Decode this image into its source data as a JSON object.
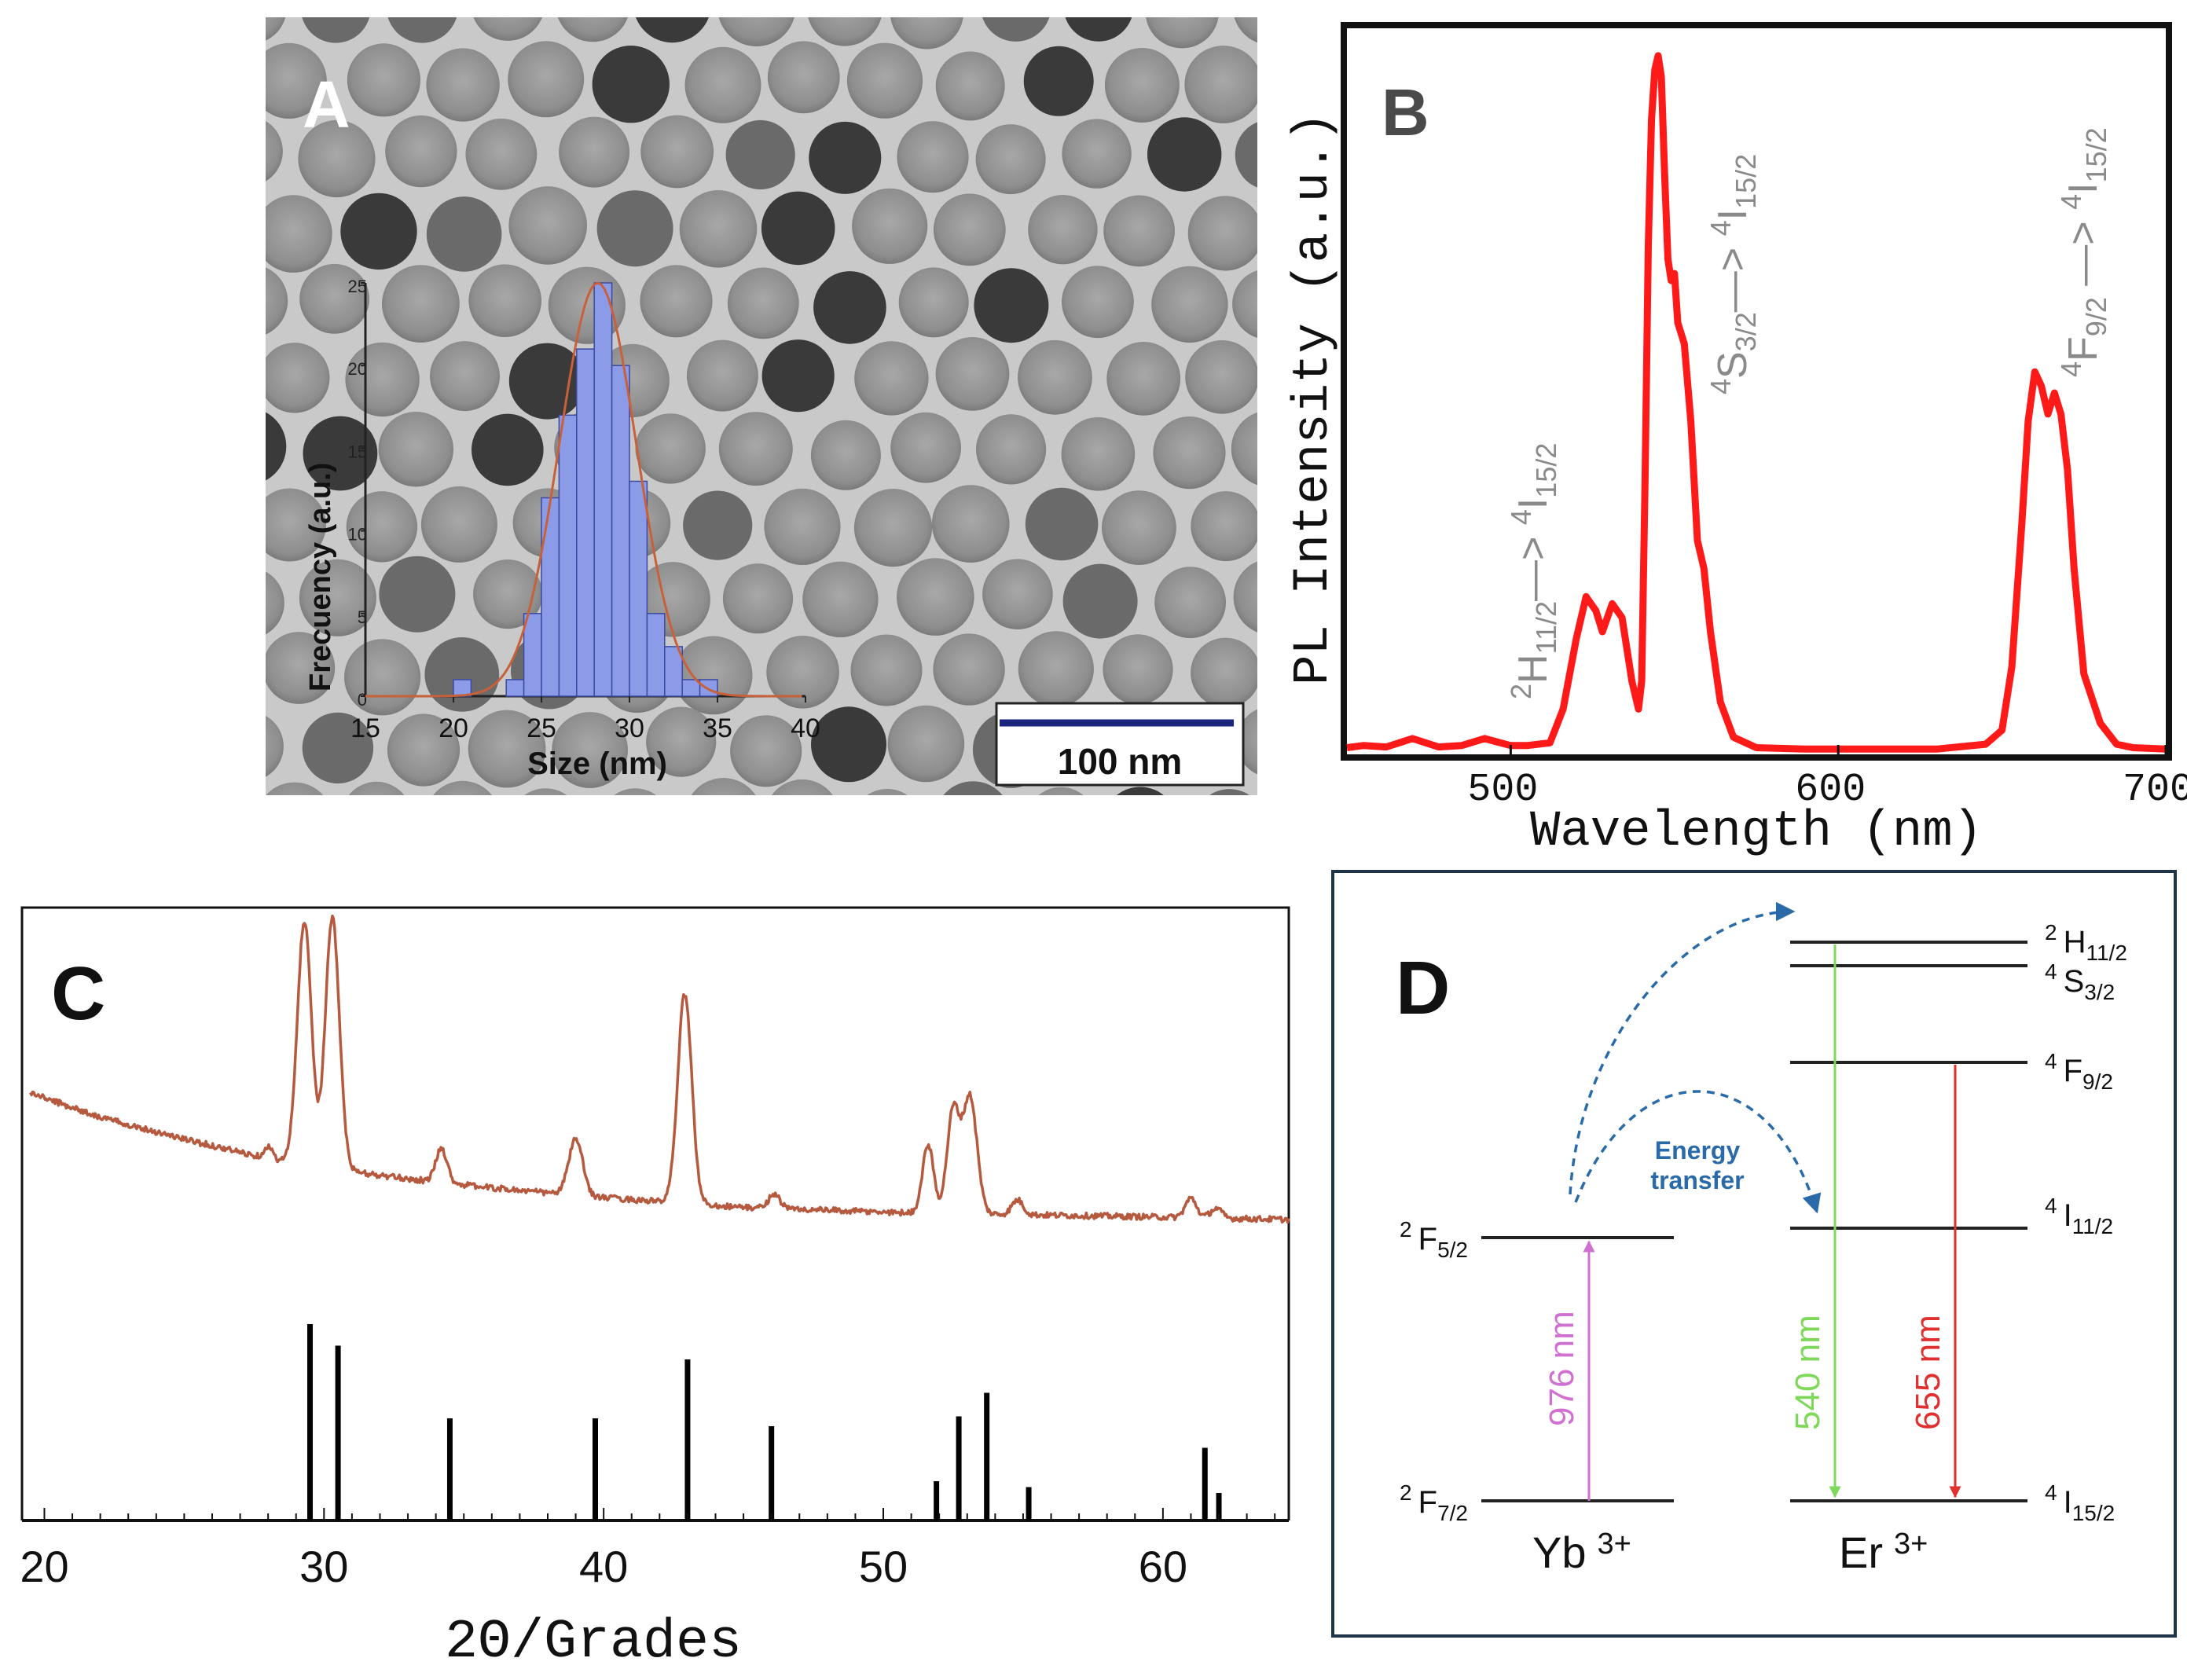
{
  "chart_data": [
    {
      "panel": "A",
      "type": "bar",
      "background": "TEM micrograph of close-packed spherical nanoparticles",
      "title": "",
      "xlabel": "Size (nm)",
      "ylabel": "Frecuency (a.u.)",
      "xlim": [
        15,
        40
      ],
      "ylim": [
        0,
        25
      ],
      "xticks": [
        15,
        20,
        25,
        30,
        35,
        40
      ],
      "yticks": [
        0,
        5,
        10,
        15,
        20,
        25
      ],
      "bin_width": 1,
      "bins": [
        20.5,
        23.5,
        24.5,
        25.5,
        26.5,
        27.5,
        28.5,
        29.5,
        30.5,
        31.5,
        32.5,
        33.5,
        34.5
      ],
      "values": [
        1,
        1,
        5,
        12,
        17,
        21,
        25,
        20,
        13,
        5,
        3,
        1,
        1
      ],
      "fit": "gaussian",
      "fit_center": 28.2,
      "fit_sigma": 2.2,
      "fit_peak": 25,
      "scale_bar": "100 nm"
    },
    {
      "panel": "B",
      "type": "line",
      "title": "",
      "xlabel": "Wavelength (nm)",
      "ylabel": "PL Intensity (a.u.)",
      "xlim": [
        450,
        700
      ],
      "ylim": [
        0,
        100
      ],
      "xticks": [
        500,
        600,
        700
      ],
      "series": [
        {
          "name": "PL",
          "color": "#ff1a1a",
          "x": [
            450,
            455,
            462,
            470,
            478,
            485,
            492,
            500,
            505,
            512,
            516,
            520,
            523,
            526,
            528,
            531,
            534,
            537,
            539,
            540,
            541,
            542,
            543,
            544,
            545,
            546,
            547,
            548,
            549,
            550,
            551,
            553,
            555,
            557,
            559,
            561,
            564,
            568,
            575,
            590,
            610,
            630,
            645,
            650,
            653,
            656,
            658,
            660,
            662,
            664,
            666,
            668,
            670,
            672,
            675,
            680,
            685,
            690,
            700
          ],
          "y": [
            0.5,
            0.8,
            0.6,
            1.8,
            0.6,
            0.8,
            1.8,
            0.8,
            0.8,
            1.2,
            6,
            16,
            22,
            20,
            17,
            21,
            19,
            10,
            6,
            10,
            38,
            72,
            90,
            97,
            99,
            96,
            82,
            70,
            67,
            68,
            61,
            58,
            47,
            30,
            26,
            17,
            7,
            2,
            0.5,
            0.3,
            0.3,
            0.3,
            1,
            3,
            12,
            32,
            47,
            54,
            52,
            48,
            51,
            48,
            40,
            26,
            11,
            4,
            1,
            0.5,
            0.3
          ]
        }
      ],
      "annotations": [
        {
          "label_sup": "2",
          "label_main": "H",
          "label_sub": "11/2",
          "arrow": "—> ",
          "target_sup": "4",
          "target_main": "I",
          "target_sub": "15/2"
        },
        {
          "label_sup": "4",
          "label_main": "S",
          "label_sub": "3/2",
          "arrow": "—> ",
          "target_sup": "4",
          "target_main": "I",
          "target_sub": "15/2"
        },
        {
          "label_sup": "4",
          "label_main": "F",
          "label_sub": "9/2",
          "arrow": " —> ",
          "target_sup": "4",
          "target_main": "I",
          "target_sub": "15/2"
        }
      ]
    },
    {
      "panel": "C",
      "type": "line",
      "title": "",
      "xlabel": "2Θ/Grades",
      "ylabel": "",
      "xlim": [
        19.2,
        64.5
      ],
      "xticks": [
        20,
        30,
        40,
        50,
        60
      ],
      "series": [
        {
          "name": "measured",
          "color": "#b55a3f",
          "baseline": [
            [
              19.5,
              52
            ],
            [
              22,
              42
            ],
            [
              25,
              33
            ],
            [
              28,
              25
            ],
            [
              32,
              18
            ],
            [
              36,
              13
            ],
            [
              40,
              9
            ],
            [
              45,
              5
            ],
            [
              50,
              3
            ],
            [
              55,
              2
            ],
            [
              60,
              1
            ],
            [
              64.5,
              0
            ]
          ],
          "peaks": [
            [
              28.0,
              5,
              0.15
            ],
            [
              29.3,
              100,
              0.25
            ],
            [
              30.3,
              103,
              0.25
            ],
            [
              34.2,
              14,
              0.2
            ],
            [
              39.0,
              23,
              0.25
            ],
            [
              42.9,
              86,
              0.25
            ],
            [
              46.1,
              6,
              0.2
            ],
            [
              51.6,
              28,
              0.2
            ],
            [
              52.5,
              42,
              0.22
            ],
            [
              53.1,
              48,
              0.25
            ],
            [
              54.8,
              6,
              0.2
            ],
            [
              61.0,
              8,
              0.2
            ],
            [
              61.9,
              4,
              0.2
            ]
          ]
        },
        {
          "name": "reference",
          "color": "#000000",
          "sticks": [
            [
              29.5,
              100
            ],
            [
              30.5,
              89
            ],
            [
              34.5,
              52
            ],
            [
              39.7,
              52
            ],
            [
              43.0,
              82
            ],
            [
              46.0,
              48
            ],
            [
              51.9,
              20
            ],
            [
              52.7,
              53
            ],
            [
              53.7,
              65
            ],
            [
              55.2,
              17
            ],
            [
              61.5,
              37
            ],
            [
              62.0,
              14
            ]
          ]
        }
      ]
    }
  ],
  "panels": {
    "a": {
      "label": "A"
    },
    "b": {
      "label": "B"
    },
    "c": {
      "label": "C"
    },
    "d": {
      "label": "D"
    }
  },
  "diagram": {
    "ions": {
      "yb": "Yb",
      "yb_charge": "3+",
      "er": "Er",
      "er_charge": "3+"
    },
    "levels": {
      "yb_f52": {
        "sup": "2",
        "main": "F",
        "sub": "5/2"
      },
      "yb_f72": {
        "sup": "2",
        "main": "F",
        "sub": "7/2"
      },
      "er_h112": {
        "sup": "2",
        "main": "H",
        "sub": "11/2"
      },
      "er_s32": {
        "sup": "4",
        "main": "S",
        "sub": "3/2"
      },
      "er_f92": {
        "sup": "4",
        "main": "F",
        "sub": "9/2"
      },
      "er_i112": {
        "sup": "4",
        "main": "I",
        "sub": "11/2"
      },
      "er_i152": {
        "sup": "4",
        "main": "I",
        "sub": "15/2"
      }
    },
    "transitions": {
      "excitation": {
        "label": "976 nm",
        "color": "#d070d0"
      },
      "green": {
        "label": "540 nm",
        "color": "#7ed85a"
      },
      "red": {
        "label": "655 nm",
        "color": "#e03030"
      }
    },
    "energy_transfer": {
      "line1": "Energy",
      "line2": "transfer",
      "color": "#2a6aa8"
    }
  }
}
